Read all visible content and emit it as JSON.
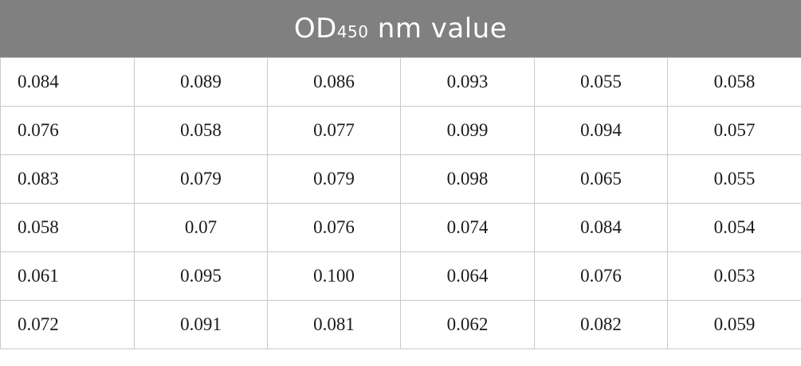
{
  "table": {
    "header": {
      "prefix": "OD",
      "subscript": "450",
      "suffix": " nm value"
    },
    "rows": [
      [
        "0.084",
        "0.089",
        "0.086",
        "0.093",
        "0.055",
        "0.058"
      ],
      [
        "0.076",
        "0.058",
        "0.077",
        "0.099",
        "0.094",
        "0.057"
      ],
      [
        "0.083",
        "0.079",
        "0.079",
        "0.098",
        "0.065",
        "0.055"
      ],
      [
        "0.058",
        "0.07",
        "0.076",
        "0.074",
        "0.084",
        "0.054"
      ],
      [
        "0.061",
        "0.095",
        "0.100",
        "0.064",
        "0.076",
        "0.053"
      ],
      [
        "0.072",
        "0.091",
        "0.081",
        "0.062",
        "0.082",
        "0.059"
      ]
    ]
  },
  "colors": {
    "header_bg": "#808080",
    "header_text": "#ffffff",
    "grid_line": "#c8c8c8"
  }
}
